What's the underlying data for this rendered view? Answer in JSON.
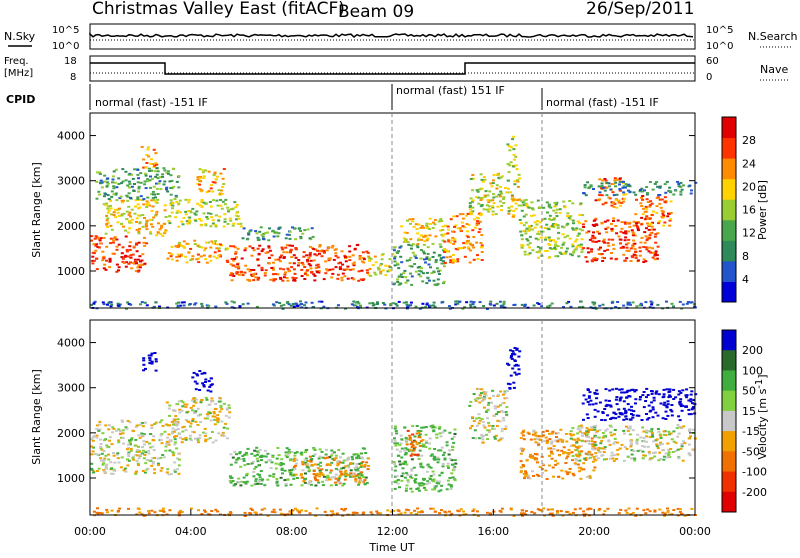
{
  "header": {
    "title": "Christmas Valley East (fitACF)",
    "beam": "Beam 09",
    "date": "26/Sep/2011"
  },
  "noise_panel": {
    "left_label": "N.Sky",
    "right_label": "N.Search",
    "left_ticks": [
      "10^5",
      "10^0"
    ],
    "right_ticks": [
      "10^5",
      "10^0"
    ]
  },
  "freq_panel": {
    "left_label_line1": "Freq.",
    "left_label_line2": "[MHz]",
    "right_label": "Nave",
    "left_ticks": [
      "18",
      "8"
    ],
    "right_ticks": [
      "60",
      "0"
    ]
  },
  "cpid": {
    "label": "CPID",
    "segments": [
      {
        "text": "normal (fast) -151 IF",
        "start_hr": 0,
        "end_hr": 12
      },
      {
        "text": "normal (fast) 151 IF",
        "start_hr": 12,
        "end_hr": 18
      },
      {
        "text": "normal (fast) -151 IF",
        "start_hr": 18,
        "end_hr": 24
      }
    ]
  },
  "chart_data": [
    {
      "type": "heatmap",
      "name": "power",
      "ylabel": "Slant Range [km]",
      "xlabel": "Time UT",
      "xlim_hr": [
        0,
        24
      ],
      "ylim": [
        180,
        4500
      ],
      "yticks": [
        "1000",
        "2000",
        "3000",
        "4000"
      ],
      "colorbar": {
        "label": "Power [dB]",
        "ticks": [
          "4",
          "8",
          "12",
          "16",
          "20",
          "24",
          "28"
        ],
        "range": [
          0,
          32
        ]
      },
      "scatter_regions": [
        {
          "t0": 0.0,
          "t1": 2.2,
          "r0": 1000,
          "r1": 1800,
          "level": 28
        },
        {
          "t0": 0.5,
          "t1": 3.0,
          "r0": 1800,
          "r1": 2600,
          "level": 20
        },
        {
          "t0": 0.2,
          "t1": 3.5,
          "r0": 2600,
          "r1": 3300,
          "level": 10
        },
        {
          "t0": 2.0,
          "t1": 2.6,
          "r0": 3300,
          "r1": 3800,
          "level": 24
        },
        {
          "t0": 3.0,
          "t1": 5.5,
          "r0": 1200,
          "r1": 1700,
          "level": 22
        },
        {
          "t0": 3.0,
          "t1": 6.0,
          "r0": 2000,
          "r1": 2600,
          "level": 16
        },
        {
          "t0": 4.2,
          "t1": 5.3,
          "r0": 2700,
          "r1": 3300,
          "level": 22
        },
        {
          "t0": 5.5,
          "t1": 11.0,
          "r0": 800,
          "r1": 1600,
          "level": 28
        },
        {
          "t0": 6.0,
          "t1": 9.0,
          "r0": 1700,
          "r1": 2000,
          "level": 10
        },
        {
          "t0": 11.0,
          "t1": 12.0,
          "r0": 900,
          "r1": 1400,
          "level": 18
        },
        {
          "t0": 12.0,
          "t1": 14.0,
          "r0": 700,
          "r1": 1600,
          "level": 10
        },
        {
          "t0": 12.3,
          "t1": 14.0,
          "r0": 1600,
          "r1": 2200,
          "level": 20
        },
        {
          "t0": 14.0,
          "t1": 15.5,
          "r0": 1200,
          "r1": 2300,
          "level": 24
        },
        {
          "t0": 15.0,
          "t1": 17.0,
          "r0": 2200,
          "r1": 3200,
          "level": 18
        },
        {
          "t0": 16.5,
          "t1": 16.9,
          "r0": 3200,
          "r1": 4000,
          "level": 16
        },
        {
          "t0": 17.0,
          "t1": 19.5,
          "r0": 1300,
          "r1": 2600,
          "level": 16
        },
        {
          "t0": 19.5,
          "t1": 22.5,
          "r0": 1200,
          "r1": 2200,
          "level": 28
        },
        {
          "t0": 20.0,
          "t1": 21.2,
          "r0": 2400,
          "r1": 3100,
          "level": 26
        },
        {
          "t0": 21.5,
          "t1": 23.0,
          "r0": 2000,
          "r1": 2700,
          "level": 26
        },
        {
          "t0": 19.5,
          "t1": 24.0,
          "r0": 2700,
          "r1": 3000,
          "level": 8
        },
        {
          "t0": 0.0,
          "t1": 24.0,
          "r0": 180,
          "r1": 350,
          "level": 6
        }
      ]
    },
    {
      "type": "heatmap",
      "name": "velocity",
      "ylabel": "Slant Range [km]",
      "xlabel": "Time UT",
      "xlim_hr": [
        0,
        24
      ],
      "ylim": [
        180,
        4500
      ],
      "yticks": [
        "1000",
        "2000",
        "3000",
        "4000"
      ],
      "xticks": [
        "00:00",
        "04:00",
        "08:00",
        "12:00",
        "16:00",
        "20:00",
        "00:00"
      ],
      "colorbar": {
        "label": "Velocity [m s-1]",
        "label_main": "Velocity [m s",
        "label_sup": "-1",
        "label_end": "]",
        "ticks": [
          "200",
          "100",
          "50",
          "15",
          "-15",
          "-50",
          "-100",
          "-200"
        ]
      },
      "scatter_regions": [
        {
          "t0": 0.0,
          "t1": 3.5,
          "r0": 1100,
          "r1": 2300,
          "vel": 0
        },
        {
          "t0": 2.0,
          "t1": 2.6,
          "r0": 3300,
          "r1": 3800,
          "vel": 200
        },
        {
          "t0": 3.0,
          "t1": 5.5,
          "r0": 1800,
          "r1": 2800,
          "vel": 0
        },
        {
          "t0": 4.0,
          "t1": 4.8,
          "r0": 2900,
          "r1": 3400,
          "vel": 200
        },
        {
          "t0": 5.5,
          "t1": 11.0,
          "r0": 850,
          "r1": 1700,
          "vel": 40
        },
        {
          "t0": 8.0,
          "t1": 11.0,
          "r0": 900,
          "r1": 1500,
          "vel": -40
        },
        {
          "t0": 12.0,
          "t1": 14.5,
          "r0": 700,
          "r1": 2200,
          "vel": 40
        },
        {
          "t0": 12.5,
          "t1": 13.2,
          "r0": 1500,
          "r1": 2100,
          "vel": -80
        },
        {
          "t0": 15.0,
          "t1": 16.5,
          "r0": 1800,
          "r1": 3000,
          "vel": 0
        },
        {
          "t0": 16.5,
          "t1": 17.0,
          "r0": 3000,
          "r1": 4000,
          "vel": 200
        },
        {
          "t0": 17.0,
          "t1": 20.0,
          "r0": 1000,
          "r1": 2100,
          "vel": -40
        },
        {
          "t0": 19.0,
          "t1": 24.0,
          "r0": 1400,
          "r1": 2200,
          "vel": 0
        },
        {
          "t0": 19.5,
          "t1": 24.0,
          "r0": 2300,
          "r1": 3000,
          "vel": 200
        },
        {
          "t0": 0.0,
          "t1": 24.0,
          "r0": 180,
          "r1": 350,
          "vel": -60
        }
      ]
    }
  ],
  "colors": {
    "power_scale": [
      "#0000d8",
      "#2255cc",
      "#2f8a5a",
      "#4aa64a",
      "#9acd32",
      "#ffd200",
      "#ff8c00",
      "#ff3300",
      "#e00000"
    ],
    "velocity_scale": [
      "#0000d0",
      "#2a6a2a",
      "#3fae3f",
      "#80d040",
      "#c8c8c8",
      "#f0a000",
      "#f07000",
      "#f03000",
      "#e00000"
    ]
  }
}
